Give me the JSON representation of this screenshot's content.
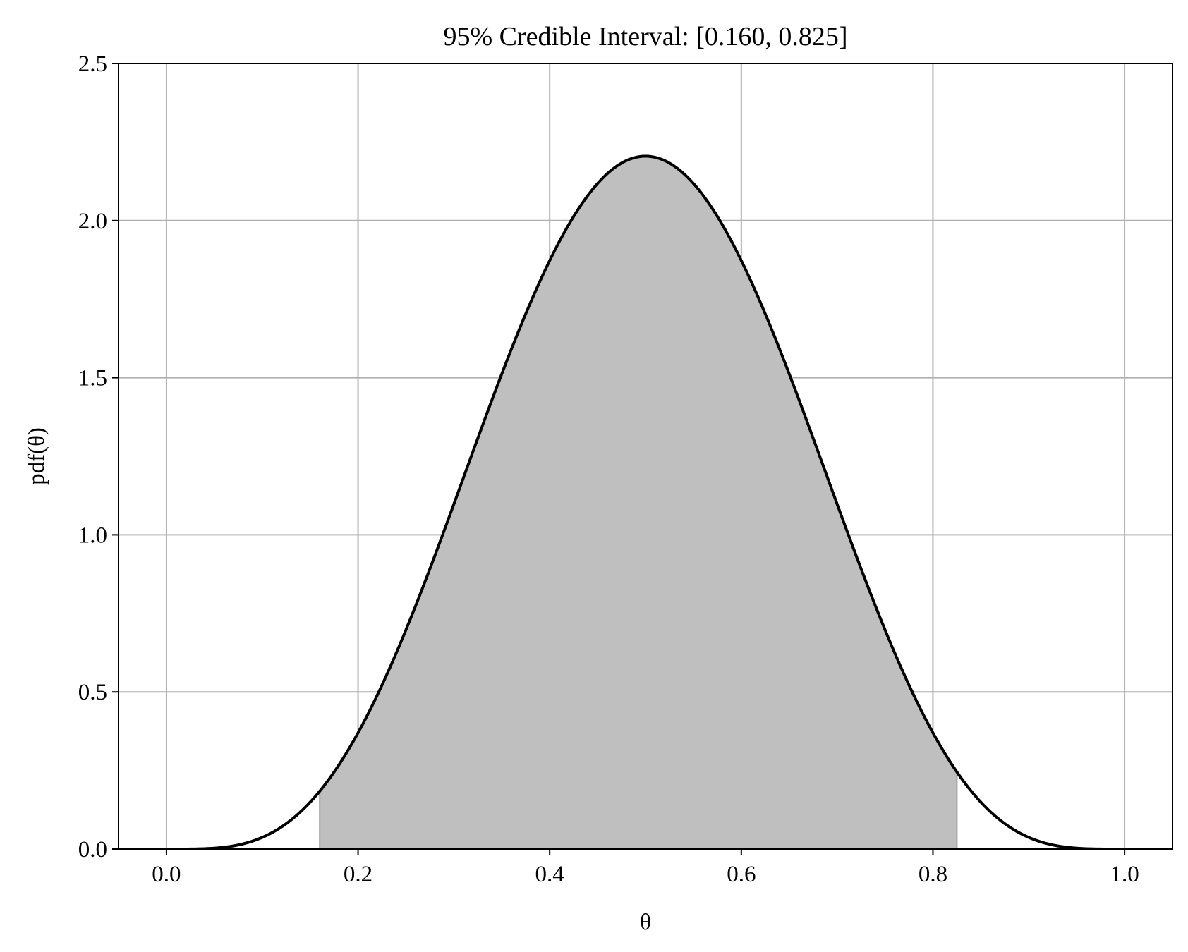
{
  "chart_data": {
    "type": "area",
    "title": "95% Credible Interval: [0.160, 0.825]",
    "xlabel": "θ",
    "ylabel": "pdf(θ)",
    "xlim": [
      -0.05,
      1.05
    ],
    "ylim": [
      0,
      2.5
    ],
    "xticks": [
      "0.0",
      "0.2",
      "0.4",
      "0.6",
      "0.8",
      "1.0"
    ],
    "yticks": [
      "0.0",
      "0.5",
      "1.0",
      "1.5",
      "2.0",
      "2.5"
    ],
    "grid": true,
    "curve": {
      "x": [
        0.0,
        0.05,
        0.1,
        0.15,
        0.2,
        0.25,
        0.3,
        0.35,
        0.4,
        0.45,
        0.5,
        0.55,
        0.6,
        0.65,
        0.7,
        0.75,
        0.8,
        0.85,
        0.9,
        0.95,
        1.0
      ],
      "y": [
        0.0,
        0.076,
        0.212,
        0.389,
        0.589,
        0.851,
        1.179,
        1.515,
        1.853,
        2.105,
        2.205,
        2.105,
        1.853,
        1.515,
        1.179,
        0.851,
        0.589,
        0.389,
        0.212,
        0.076,
        0.0
      ]
    },
    "shaded_interval": [
      0.16,
      0.825
    ],
    "colors": {
      "line": "#000000",
      "fill": "#bfbfbf",
      "grid": "#b0b0b0",
      "interval_edge": "#a0a0a0"
    }
  }
}
